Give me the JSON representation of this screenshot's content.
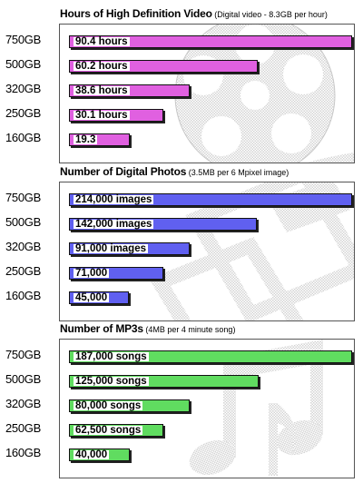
{
  "chart_data": [
    {
      "type": "bar",
      "orientation": "horizontal",
      "title": "Hours of High Definition Video",
      "subtitle": "(Digital video - 8.3GB per hour)",
      "categories": [
        "750GB",
        "500GB",
        "320GB",
        "250GB",
        "160GB"
      ],
      "values": [
        90.4,
        60.2,
        38.6,
        30.1,
        19.3
      ],
      "labels": [
        "90.4 hours",
        "60.2 hours",
        "38.6 hours",
        "30.1 hours",
        "19.3"
      ],
      "color": "#e060e0",
      "background_icon": "film-reel-icon"
    },
    {
      "type": "bar",
      "orientation": "horizontal",
      "title": "Number of Digital Photos",
      "subtitle": "(3.5MB per 6 Mpixel image)",
      "categories": [
        "750GB",
        "500GB",
        "320GB",
        "250GB",
        "160GB"
      ],
      "values": [
        214000,
        142000,
        91000,
        71000,
        45000
      ],
      "labels": [
        "214,000 images",
        "142,000 images",
        "91,000 images",
        "71,000",
        "45,000"
      ],
      "color": "#6060f0",
      "background_icon": "photo-frames-icon"
    },
    {
      "type": "bar",
      "orientation": "horizontal",
      "title": "Number of MP3s",
      "subtitle": "(4MB per 4 minute song)",
      "categories": [
        "750GB",
        "500GB",
        "320GB",
        "250GB",
        "160GB"
      ],
      "values": [
        187000,
        125000,
        80000,
        62500,
        40000
      ],
      "labels": [
        "187,000 songs",
        "125,000 songs",
        "80,000 songs",
        "62,500 songs",
        "40,000"
      ],
      "color": "#60dc60",
      "background_icon": "music-notes-icon"
    }
  ]
}
